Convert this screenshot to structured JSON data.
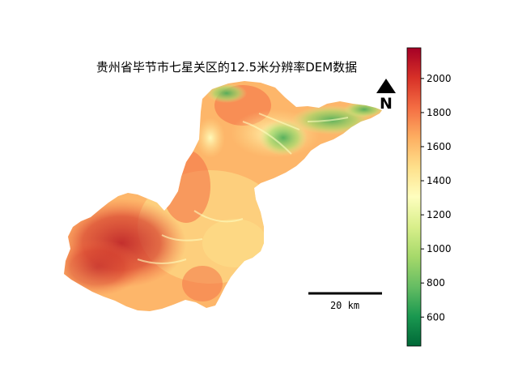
{
  "title": "贵州省毕节市七星关区的12.5米分辨率DEM数据",
  "north_arrow": {
    "letter": "N",
    "icon": "north-arrow-icon"
  },
  "scale_bar": {
    "label": "20 km"
  },
  "colorbar": {
    "colormap": "RdYlGn_r",
    "min": 430,
    "max": 2180,
    "ticks": [
      "600",
      "800",
      "1000",
      "1200",
      "1400",
      "1600",
      "1800",
      "2000"
    ]
  },
  "colors": {
    "low": "#006837",
    "mid": "#fefebe",
    "high": "#a50026"
  }
}
